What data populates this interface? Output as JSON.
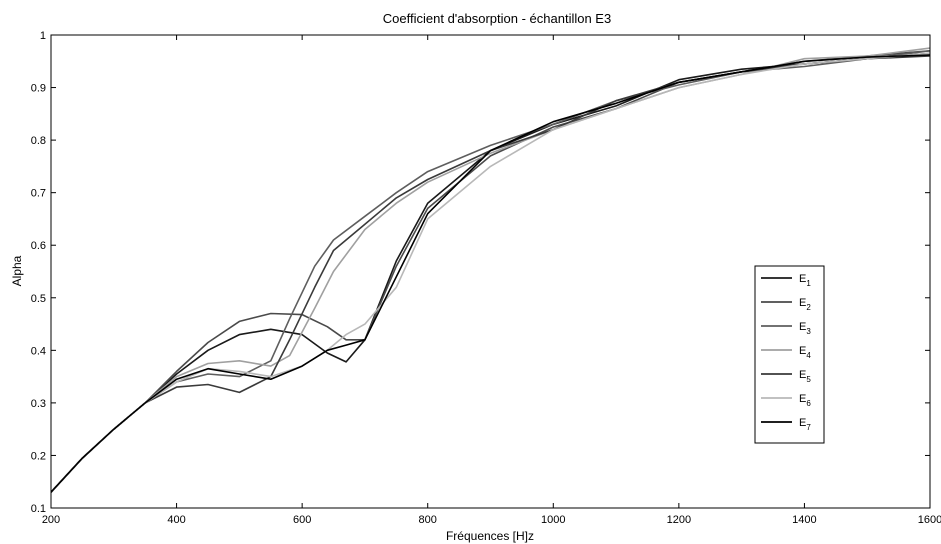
{
  "chart_data": {
    "type": "line",
    "title": "Coefficient d'absorption - échantillon E3",
    "xlabel": "Fréquences [H]z",
    "ylabel": "Alpha",
    "xlim": [
      200,
      1600
    ],
    "ylim": [
      0.1,
      1
    ],
    "xticks": [
      "200",
      "400",
      "600",
      "800",
      "1000",
      "1200",
      "1400",
      "1600"
    ],
    "yticks": [
      "0.1",
      "0.2",
      "0.3",
      "0.4",
      "0.5",
      "0.6",
      "0.7",
      "0.8",
      "0.9",
      "1"
    ],
    "grid": false,
    "legend_position": "center-right",
    "series": [
      {
        "name": "E",
        "sub": "1",
        "color": "#1a1a1a",
        "x": [
          200,
          250,
          300,
          350,
          400,
          450,
          500,
          550,
          600,
          640,
          670,
          700,
          750,
          800,
          900,
          1000,
          1100,
          1200,
          1300,
          1400,
          1500,
          1600
        ],
        "y": [
          0.13,
          0.195,
          0.25,
          0.3,
          0.355,
          0.4,
          0.43,
          0.44,
          0.43,
          0.395,
          0.378,
          0.42,
          0.57,
          0.68,
          0.78,
          0.83,
          0.865,
          0.915,
          0.935,
          0.945,
          0.955,
          0.965
        ]
      },
      {
        "name": "E",
        "sub": "2",
        "color": "#4a4a4a",
        "x": [
          200,
          250,
          300,
          350,
          400,
          450,
          500,
          550,
          600,
          640,
          670,
          700,
          750,
          800,
          900,
          1000,
          1100,
          1200,
          1300,
          1400,
          1500,
          1600
        ],
        "y": [
          0.13,
          0.195,
          0.25,
          0.3,
          0.36,
          0.415,
          0.455,
          0.47,
          0.468,
          0.445,
          0.42,
          0.42,
          0.56,
          0.67,
          0.77,
          0.825,
          0.86,
          0.91,
          0.93,
          0.95,
          0.96,
          0.97
        ]
      },
      {
        "name": "E",
        "sub": "3",
        "color": "#5e5e5e",
        "x": [
          200,
          250,
          300,
          350,
          400,
          450,
          500,
          550,
          580,
          620,
          650,
          700,
          750,
          800,
          900,
          1000,
          1100,
          1200,
          1300,
          1400,
          1500,
          1600
        ],
        "y": [
          0.13,
          0.195,
          0.25,
          0.3,
          0.34,
          0.355,
          0.35,
          0.38,
          0.46,
          0.56,
          0.61,
          0.655,
          0.7,
          0.74,
          0.79,
          0.83,
          0.875,
          0.905,
          0.93,
          0.94,
          0.955,
          0.97
        ]
      },
      {
        "name": "E",
        "sub": "4",
        "color": "#a0a0a0",
        "x": [
          200,
          250,
          300,
          350,
          400,
          450,
          500,
          550,
          580,
          620,
          650,
          700,
          750,
          800,
          900,
          1000,
          1100,
          1200,
          1300,
          1400,
          1500,
          1600
        ],
        "y": [
          0.13,
          0.195,
          0.25,
          0.3,
          0.35,
          0.375,
          0.38,
          0.37,
          0.39,
          0.48,
          0.55,
          0.63,
          0.68,
          0.72,
          0.775,
          0.82,
          0.86,
          0.9,
          0.925,
          0.955,
          0.96,
          0.975
        ]
      },
      {
        "name": "E",
        "sub": "5",
        "color": "#3a3a3a",
        "x": [
          200,
          250,
          300,
          350,
          400,
          450,
          500,
          550,
          580,
          620,
          650,
          700,
          750,
          800,
          900,
          1000,
          1100,
          1200,
          1300,
          1400,
          1500,
          1600
        ],
        "y": [
          0.13,
          0.195,
          0.25,
          0.3,
          0.33,
          0.335,
          0.32,
          0.35,
          0.42,
          0.52,
          0.59,
          0.64,
          0.69,
          0.725,
          0.78,
          0.82,
          0.875,
          0.91,
          0.93,
          0.945,
          0.955,
          0.96
        ]
      },
      {
        "name": "E",
        "sub": "6",
        "color": "#b8b8b8",
        "x": [
          200,
          250,
          300,
          350,
          400,
          450,
          500,
          550,
          600,
          640,
          670,
          700,
          750,
          800,
          900,
          1000,
          1100,
          1200,
          1300,
          1400,
          1500,
          1600
        ],
        "y": [
          0.13,
          0.195,
          0.25,
          0.3,
          0.34,
          0.365,
          0.36,
          0.35,
          0.37,
          0.4,
          0.43,
          0.45,
          0.52,
          0.65,
          0.75,
          0.82,
          0.86,
          0.9,
          0.925,
          0.945,
          0.955,
          0.965
        ]
      },
      {
        "name": "E",
        "sub": "7",
        "color": "#000000",
        "x": [
          200,
          250,
          300,
          350,
          400,
          450,
          500,
          550,
          600,
          640,
          670,
          700,
          750,
          800,
          900,
          1000,
          1100,
          1200,
          1300,
          1400,
          1500,
          1600
        ],
        "y": [
          0.13,
          0.195,
          0.25,
          0.3,
          0.345,
          0.365,
          0.355,
          0.345,
          0.37,
          0.4,
          0.41,
          0.42,
          0.54,
          0.66,
          0.78,
          0.835,
          0.87,
          0.91,
          0.93,
          0.95,
          0.958,
          0.962
        ]
      }
    ]
  }
}
